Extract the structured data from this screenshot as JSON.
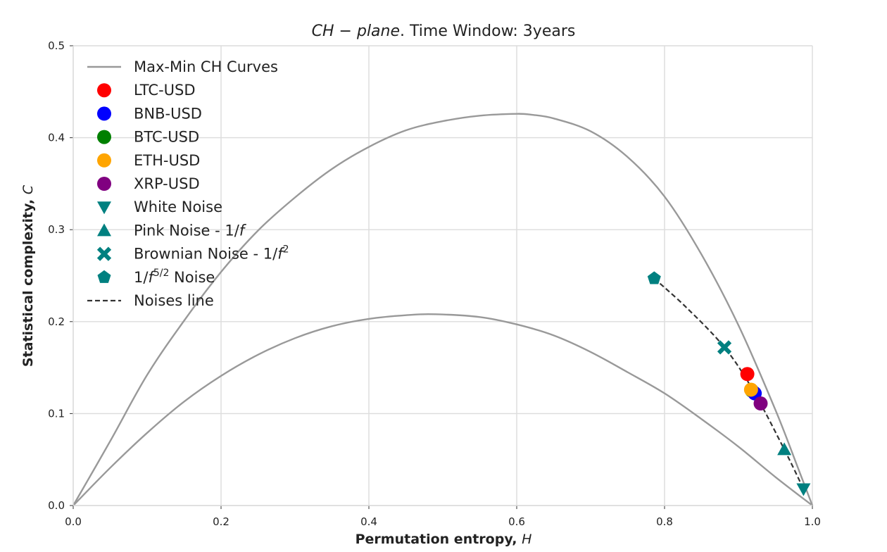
{
  "chart_data": {
    "type": "scatter",
    "title": {
      "italic": "CH − plane",
      "rest": ". Time Window: 3years"
    },
    "xlabel": {
      "text": "Permutation entropy, ",
      "var": "H"
    },
    "ylabel": {
      "text": "Statistical complexity, ",
      "var": "C"
    },
    "xlim": [
      0.0,
      1.0
    ],
    "ylim": [
      0.0,
      0.5
    ],
    "xticks": [
      "0.0",
      "0.2",
      "0.4",
      "0.6",
      "0.8",
      "1.0"
    ],
    "yticks": [
      "0.0",
      "0.1",
      "0.2",
      "0.3",
      "0.4",
      "0.5"
    ],
    "grid": true,
    "legend_position": "upper-left",
    "curves": {
      "name": "Max-Min CH Curves",
      "color": "#999999",
      "upper": {
        "x": [
          0.0,
          0.05,
          0.1,
          0.15,
          0.2,
          0.25,
          0.3,
          0.35,
          0.4,
          0.45,
          0.5,
          0.55,
          0.6,
          0.62,
          0.65,
          0.7,
          0.75,
          0.8,
          0.85,
          0.9,
          0.95,
          0.98,
          1.0
        ],
        "y": [
          0.0,
          0.07,
          0.142,
          0.201,
          0.254,
          0.299,
          0.335,
          0.366,
          0.39,
          0.408,
          0.418,
          0.424,
          0.426,
          0.425,
          0.421,
          0.407,
          0.379,
          0.336,
          0.273,
          0.196,
          0.104,
          0.042,
          0.0
        ]
      },
      "lower": {
        "x": [
          0.0,
          0.05,
          0.1,
          0.15,
          0.2,
          0.25,
          0.3,
          0.35,
          0.4,
          0.45,
          0.49,
          0.55,
          0.6,
          0.65,
          0.7,
          0.75,
          0.8,
          0.85,
          0.9,
          0.95,
          1.0
        ],
        "y": [
          0.0,
          0.041,
          0.079,
          0.113,
          0.141,
          0.164,
          0.182,
          0.195,
          0.203,
          0.207,
          0.208,
          0.205,
          0.197,
          0.185,
          0.167,
          0.145,
          0.122,
          0.094,
          0.064,
          0.031,
          0.0
        ]
      }
    },
    "series": [
      {
        "name": "LTC-USD",
        "marker": "circle",
        "color": "#ff0000",
        "x": 0.912,
        "y": 0.143
      },
      {
        "name": "BNB-USD",
        "marker": "circle",
        "color": "#0000ff",
        "x": 0.922,
        "y": 0.122
      },
      {
        "name": "BTC-USD",
        "marker": "circle",
        "color": "#008000",
        "x": 0.918,
        "y": 0.125
      },
      {
        "name": "ETH-USD",
        "marker": "circle",
        "color": "#ffa500",
        "x": 0.917,
        "y": 0.126
      },
      {
        "name": "XRP-USD",
        "marker": "circle",
        "color": "#800080",
        "x": 0.93,
        "y": 0.111
      },
      {
        "name": "White Noise",
        "marker": "triangle-down",
        "color": "#008080",
        "x": 0.988,
        "y": 0.018
      },
      {
        "name": "Pink Noise - 1/f",
        "name_parts": [
          "Pink Noise - 1/",
          "f",
          "",
          ""
        ],
        "marker": "triangle-up",
        "color": "#008080",
        "x": 0.962,
        "y": 0.061
      },
      {
        "name": "Brownian Noise - 1/f2",
        "name_parts": [
          "Brownian Noise - 1/",
          "f",
          "2",
          ""
        ],
        "marker": "x",
        "color": "#008080",
        "x": 0.881,
        "y": 0.172
      },
      {
        "name": "1/f5/2 Noise",
        "name_parts": [
          "1/",
          "f",
          "5/2",
          " Noise"
        ],
        "marker": "pentagon",
        "color": "#008080",
        "x": 0.786,
        "y": 0.247
      }
    ],
    "noises_line": {
      "name": "Noises line",
      "color": "#333333",
      "x": [
        0.786,
        0.83,
        0.881,
        0.92,
        0.962,
        0.988
      ],
      "y": [
        0.247,
        0.215,
        0.172,
        0.125,
        0.061,
        0.018
      ]
    }
  }
}
